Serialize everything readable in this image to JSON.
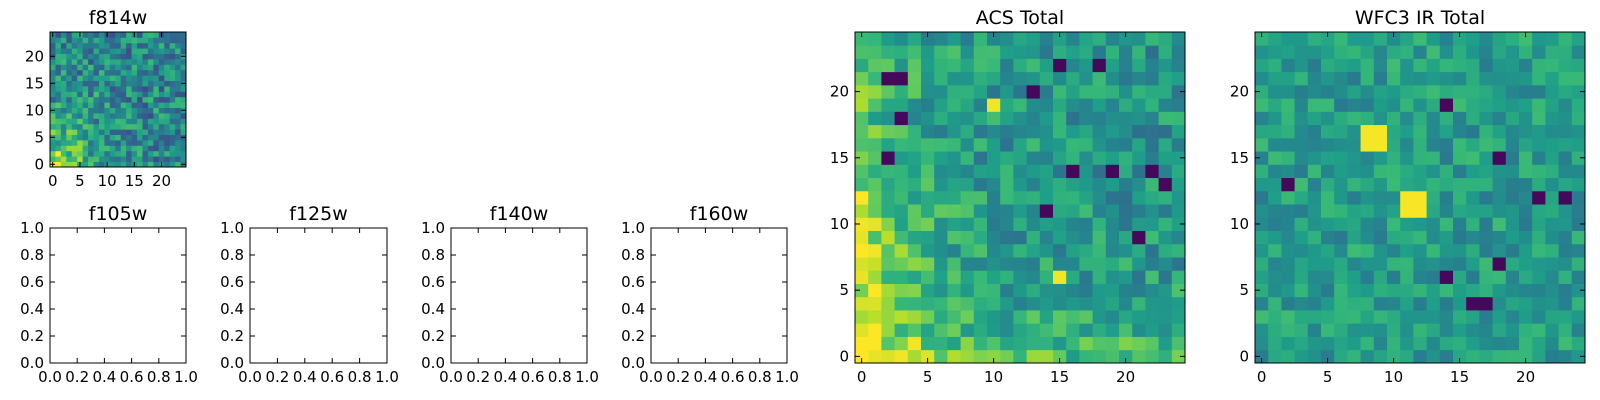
{
  "chart_data": [
    {
      "type": "heatmap",
      "title": "f814w",
      "grid": "25x25",
      "xlim": [
        -0.5,
        24.5
      ],
      "ylim": [
        -0.5,
        24.5
      ],
      "xticks": [
        0,
        5,
        10,
        15,
        20
      ],
      "yticks": [
        0,
        5,
        10,
        15,
        20
      ],
      "xtick_labels": [
        "0",
        "5",
        "10",
        "15",
        "20"
      ],
      "ytick_labels": [
        "0",
        "5",
        "10",
        "15",
        "20"
      ],
      "colormap": "viridis",
      "pattern": "bright yellow values concentrated toward the lower-left corner, mixed teal/green elsewhere"
    },
    {
      "type": "heatmap",
      "title": "f105w",
      "empty": true,
      "xlim": [
        0,
        1
      ],
      "ylim": [
        0,
        1
      ],
      "xtick_labels": [
        "0.0",
        "0.2",
        "0.4",
        "0.6",
        "0.8",
        "1.0"
      ],
      "ytick_labels": [
        "0.0",
        "0.2",
        "0.4",
        "0.6",
        "0.8",
        "1.0"
      ]
    },
    {
      "type": "heatmap",
      "title": "f125w",
      "empty": true,
      "xlim": [
        0,
        1
      ],
      "ylim": [
        0,
        1
      ],
      "xtick_labels": [
        "0.0",
        "0.2",
        "0.4",
        "0.6",
        "0.8",
        "1.0"
      ],
      "ytick_labels": [
        "0.0",
        "0.2",
        "0.4",
        "0.6",
        "0.8",
        "1.0"
      ]
    },
    {
      "type": "heatmap",
      "title": "f140w",
      "empty": true,
      "xlim": [
        0,
        1
      ],
      "ylim": [
        0,
        1
      ],
      "xtick_labels": [
        "0.0",
        "0.2",
        "0.4",
        "0.6",
        "0.8",
        "1.0"
      ],
      "ytick_labels": [
        "0.0",
        "0.2",
        "0.4",
        "0.6",
        "0.8",
        "1.0"
      ]
    },
    {
      "type": "heatmap",
      "title": "f160w",
      "empty": true,
      "xlim": [
        0,
        1
      ],
      "ylim": [
        0,
        1
      ],
      "xtick_labels": [
        "0.0",
        "0.2",
        "0.4",
        "0.6",
        "0.8",
        "1.0"
      ],
      "ytick_labels": [
        "0.0",
        "0.2",
        "0.4",
        "0.6",
        "0.8",
        "1.0"
      ]
    },
    {
      "type": "heatmap",
      "title": "ACS Total",
      "grid": "25x25",
      "xlim": [
        -0.5,
        24.5
      ],
      "ylim": [
        -0.5,
        24.5
      ],
      "xticks": [
        0,
        5,
        10,
        15,
        20
      ],
      "yticks": [
        0,
        5,
        10,
        15,
        20
      ],
      "xtick_labels": [
        "0",
        "5",
        "10",
        "15",
        "20"
      ],
      "ytick_labels": [
        "0",
        "5",
        "10",
        "15",
        "20"
      ],
      "colormap": "viridis",
      "pattern": "bright yellow values along the left edge and bottom-left, green/teal elsewhere, scattered dark purple cells",
      "dark_cells": [
        [
          2,
          21
        ],
        [
          3,
          21
        ],
        [
          13,
          20
        ],
        [
          15,
          22
        ],
        [
          18,
          22
        ],
        [
          2,
          15
        ],
        [
          14,
          11
        ],
        [
          16,
          14
        ],
        [
          19,
          14
        ],
        [
          22,
          14
        ],
        [
          23,
          13
        ],
        [
          21,
          9
        ],
        [
          3,
          18
        ]
      ],
      "bright_cells": [
        [
          10,
          19
        ],
        [
          15,
          6
        ],
        [
          4,
          1
        ],
        [
          3,
          0
        ],
        [
          0,
          10
        ],
        [
          1,
          8
        ]
      ]
    },
    {
      "type": "heatmap",
      "title": "WFC3 IR Total",
      "grid": "25x25",
      "xlim": [
        -0.5,
        24.5
      ],
      "ylim": [
        -0.5,
        24.5
      ],
      "xticks": [
        0,
        5,
        10,
        15,
        20
      ],
      "yticks": [
        0,
        5,
        10,
        15,
        20
      ],
      "xtick_labels": [
        "0",
        "5",
        "10",
        "15",
        "20"
      ],
      "ytick_labels": [
        "0",
        "5",
        "10",
        "15",
        "20"
      ],
      "colormap": "viridis",
      "pattern": "mostly uniform teal/green noise with two bright 2x2 yellow blocks and scattered dark purple cells",
      "bright_blocks": [
        [
          [
            8,
            16
          ],
          [
            9,
            16
          ],
          [
            8,
            17
          ],
          [
            9,
            17
          ]
        ],
        [
          [
            11,
            11
          ],
          [
            12,
            11
          ],
          [
            11,
            12
          ],
          [
            12,
            12
          ]
        ]
      ],
      "dark_cells": [
        [
          2,
          13
        ],
        [
          14,
          19
        ],
        [
          18,
          15
        ],
        [
          21,
          12
        ],
        [
          23,
          12
        ],
        [
          18,
          7
        ],
        [
          14,
          6
        ],
        [
          17,
          4
        ],
        [
          16,
          4
        ]
      ]
    }
  ]
}
